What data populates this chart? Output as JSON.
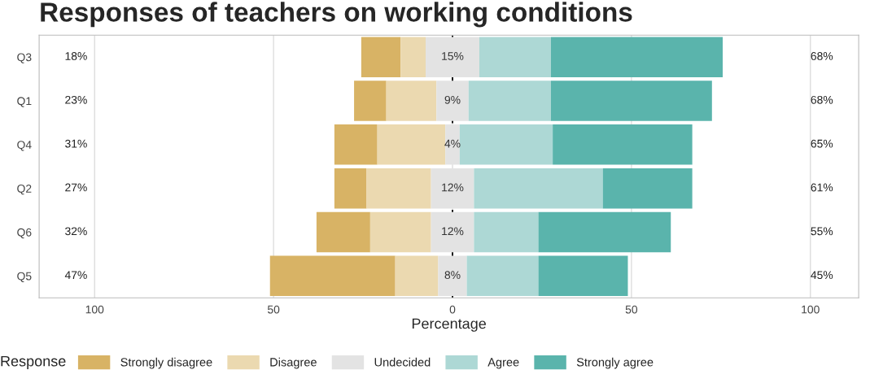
{
  "chart_data": {
    "type": "bar",
    "orientation": "horizontal",
    "title": "Responses of teachers on working conditions",
    "xlabel": "Percentage",
    "legend_title": "Response",
    "categories": [
      "Q3",
      "Q1",
      "Q4",
      "Q2",
      "Q6",
      "Q5"
    ],
    "series": [
      {
        "name": "Strongly disagree",
        "color": "#d8b365",
        "base": [
          -25.5,
          -27.5,
          -33,
          -33,
          -38,
          -51
        ],
        "values": [
          11,
          9,
          12,
          9,
          15,
          35
        ]
      },
      {
        "name": "Disagree",
        "color": "#ebd9b0",
        "base": [
          -14.5,
          -18.5,
          -21,
          -24,
          -23,
          -16
        ],
        "values": [
          7,
          14,
          19,
          18,
          17,
          12
        ]
      },
      {
        "name": "Undecided",
        "color": "#e3e3e3",
        "base": [
          -7.5,
          -4.5,
          -2,
          -6,
          -6,
          -4
        ],
        "values": [
          15,
          9,
          4,
          12,
          12,
          8
        ],
        "value_labels": [
          "15%",
          "9%",
          "4%",
          "12%",
          "12%",
          "8%"
        ]
      },
      {
        "name": "Agree",
        "color": "#add8d5",
        "base": [
          7.5,
          4.5,
          2,
          6,
          6,
          4
        ],
        "values": [
          20,
          23,
          26,
          36,
          18,
          20
        ]
      },
      {
        "name": "Strongly agree",
        "color": "#5ab4ac",
        "base": [
          27.5,
          27.5,
          28,
          42,
          24,
          24
        ],
        "values": [
          48,
          45,
          39,
          25,
          37,
          25
        ]
      }
    ],
    "annotations": [
      "18%",
      "23%",
      "31%",
      "27%",
      "32%",
      "47%",
      "68%",
      "68%",
      "65%",
      "61%",
      "55%",
      "45%"
    ],
    "xlim": [
      -115.5,
      113.5
    ],
    "xticks": [
      {
        "value": -100,
        "label": "100"
      },
      {
        "value": -50,
        "label": "50"
      },
      0,
      50,
      100
    ],
    "ref_lines": [
      {
        "axis": "x",
        "value": 0,
        "color": "#000000",
        "line_style": "dashed"
      }
    ],
    "grid": "x",
    "legend": "bottom"
  }
}
